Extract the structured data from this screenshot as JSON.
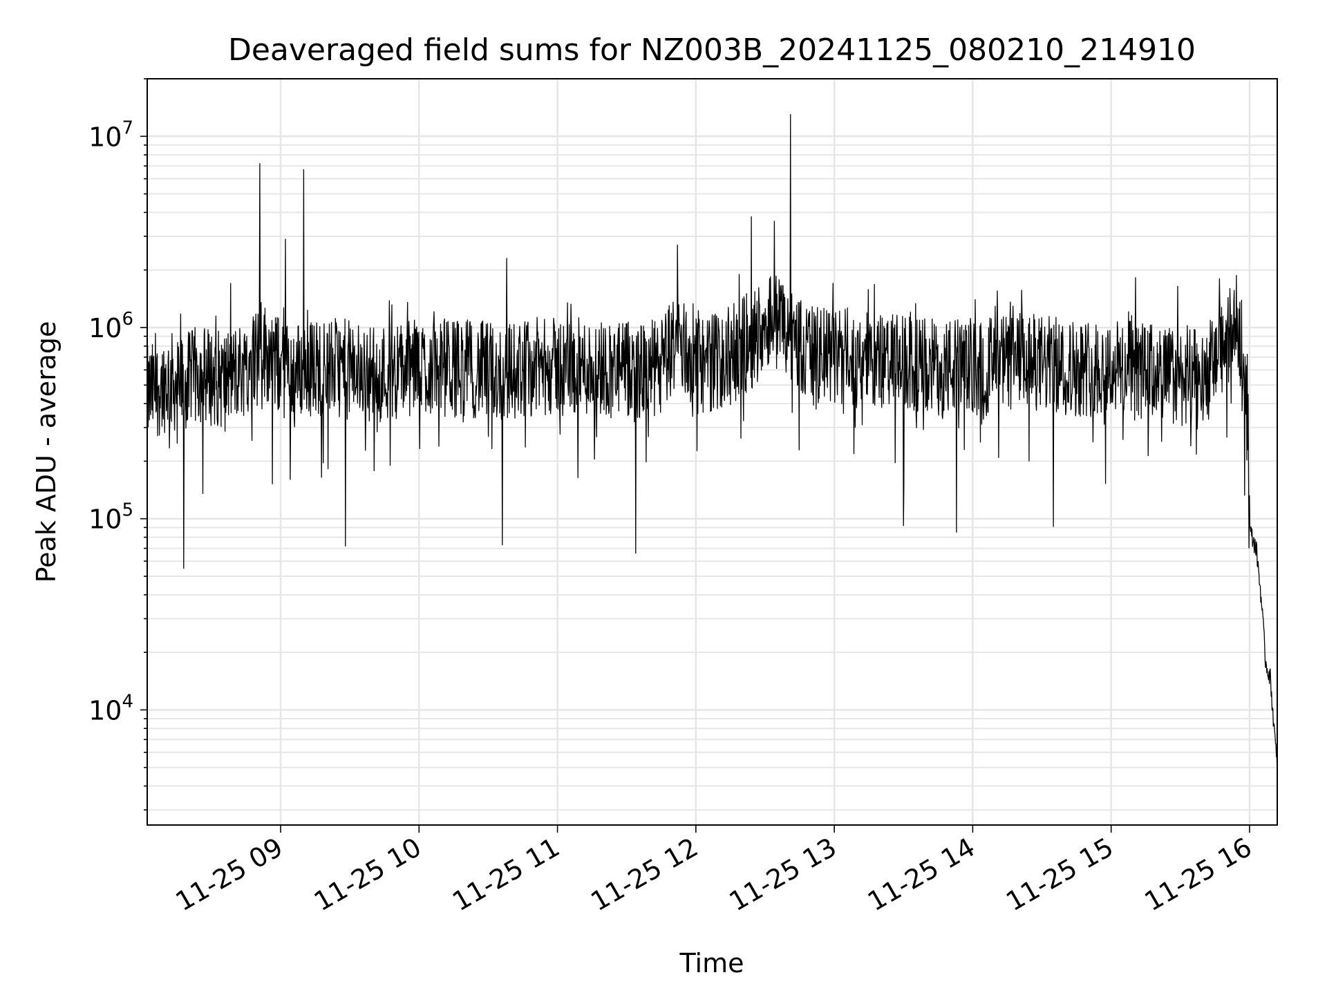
{
  "chart_data": {
    "type": "line",
    "title": "Deaveraged field sums for NZ003B_20241125_080210_214910",
    "xlabel": "Time",
    "ylabel": "Peak ADU - average",
    "yscale": "log",
    "ylim": [
      2500,
      20000000
    ],
    "xlim": [
      "2024-11-25T08:02:10",
      "2024-11-25T16:12:00"
    ],
    "grid": true,
    "line_color": "#000000",
    "grid_color": "#e6e6e6",
    "x_tick_labels": [
      "11-25 09",
      "11-25 10",
      "11-25 11",
      "11-25 12",
      "11-25 13",
      "11-25 14",
      "11-25 15",
      "11-25 16"
    ],
    "x_tick_times": [
      "2024-11-25T09:00:00",
      "2024-11-25T10:00:00",
      "2024-11-25T11:00:00",
      "2024-11-25T12:00:00",
      "2024-11-25T13:00:00",
      "2024-11-25T14:00:00",
      "2024-11-25T15:00:00",
      "2024-11-25T16:00:00"
    ],
    "y_ticks": [
      {
        "value": 10000,
        "base": "10",
        "exp": "4"
      },
      {
        "value": 100000,
        "base": "10",
        "exp": "5"
      },
      {
        "value": 1000000,
        "base": "10",
        "exp": "6"
      },
      {
        "value": 10000000,
        "base": "10",
        "exp": "7"
      }
    ],
    "series": [
      {
        "x": [
          "2024-11-25T08:02:10",
          "2024-11-25T08:12:00",
          "2024-11-25T08:16:00",
          "2024-11-25T08:25:00",
          "2024-11-25T08:35:00",
          "2024-11-25T08:45:00",
          "2024-11-25T08:51:00",
          "2024-11-25T09:00:00",
          "2024-11-25T09:05:00",
          "2024-11-25T09:10:00",
          "2024-11-25T09:25:00",
          "2024-11-25T09:40:00",
          "2024-11-25T10:00:00",
          "2024-11-25T10:20:00",
          "2024-11-25T10:35:00",
          "2024-11-25T10:48:00",
          "2024-11-25T11:00:00",
          "2024-11-25T11:20:00",
          "2024-11-25T11:35:00",
          "2024-11-25T11:45:00",
          "2024-11-25T11:52:00",
          "2024-11-25T12:00:00",
          "2024-11-25T12:15:00",
          "2024-11-25T12:25:00",
          "2024-11-25T12:32:00",
          "2024-11-25T12:42:00",
          "2024-11-25T12:50:00",
          "2024-11-25T13:00:00",
          "2024-11-25T13:20:00",
          "2024-11-25T13:40:00",
          "2024-11-25T14:00:00",
          "2024-11-25T14:20:00",
          "2024-11-25T14:40:00",
          "2024-11-25T15:00:00",
          "2024-11-25T15:20:00",
          "2024-11-25T15:40:00",
          "2024-11-25T15:55:00",
          "2024-11-25T15:59:00",
          "2024-11-25T16:00:00",
          "2024-11-25T16:03:00",
          "2024-11-25T16:05:00",
          "2024-11-25T16:07:00",
          "2024-11-25T16:09:00",
          "2024-11-25T16:12:00"
        ],
        "values": [
          500000,
          600000,
          550000,
          650000,
          600000,
          700000,
          900000,
          700000,
          650000,
          700000,
          700000,
          650000,
          700000,
          700000,
          650000,
          700000,
          700000,
          700000,
          650000,
          700000,
          1000000,
          700000,
          800000,
          1000000,
          1300000,
          1000000,
          800000,
          800000,
          750000,
          700000,
          700000,
          750000,
          700000,
          700000,
          650000,
          600000,
          1200000,
          600000,
          90000,
          70000,
          40000,
          18000,
          15000,
          5000
        ]
      }
    ],
    "spikes": [
      {
        "x": "2024-11-25T08:18:00",
        "value": 55000
      },
      {
        "x": "2024-11-25T08:51:00",
        "value": 7200000
      },
      {
        "x": "2024-11-25T09:02:00",
        "value": 2900000
      },
      {
        "x": "2024-11-25T09:10:00",
        "value": 6700000
      },
      {
        "x": "2024-11-25T09:28:00",
        "value": 72000
      },
      {
        "x": "2024-11-25T10:36:00",
        "value": 73000
      },
      {
        "x": "2024-11-25T10:38:00",
        "value": 2300000
      },
      {
        "x": "2024-11-25T11:34:00",
        "value": 66000
      },
      {
        "x": "2024-11-25T11:52:00",
        "value": 2700000
      },
      {
        "x": "2024-11-25T12:24:00",
        "value": 3800000
      },
      {
        "x": "2024-11-25T12:34:00",
        "value": 3600000
      },
      {
        "x": "2024-11-25T12:41:00",
        "value": 13000000
      },
      {
        "x": "2024-11-25T13:30:00",
        "value": 92000
      },
      {
        "x": "2024-11-25T13:53:00",
        "value": 85000
      },
      {
        "x": "2024-11-25T14:35:00",
        "value": 91000
      },
      {
        "x": "2024-11-25T15:47:00",
        "value": 1800000
      }
    ]
  }
}
